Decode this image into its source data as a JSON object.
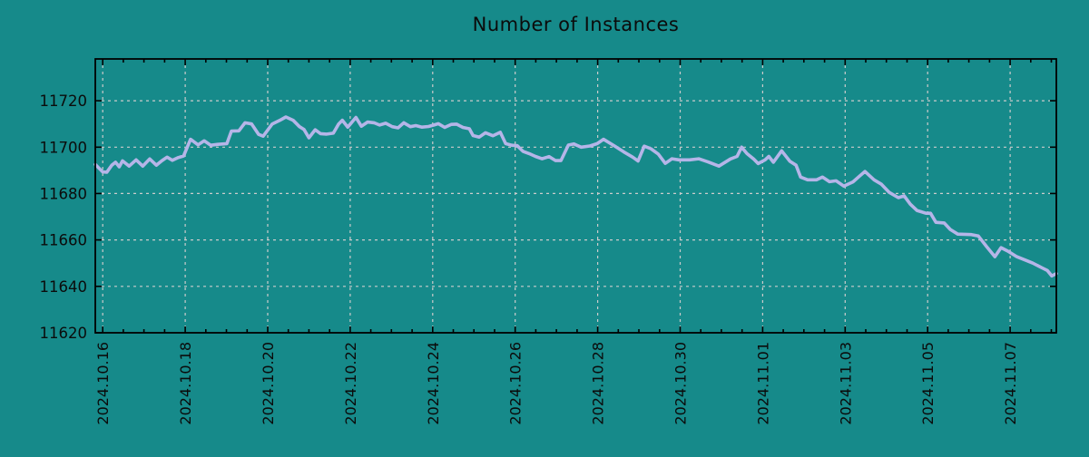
{
  "colors": {
    "background": "#168a8a",
    "line": "#b5b5e8",
    "grid": "#cccccc",
    "axis": "#000000",
    "text": "#0b0b0b"
  },
  "chart_data": {
    "type": "line",
    "title": "Number of Instances",
    "xlabel": "",
    "ylabel": "",
    "grid": true,
    "legend": null,
    "xlim": [
      -0.18,
      23.12
    ],
    "ylim": [
      11620,
      11738
    ],
    "y_ticks": [
      11620,
      11640,
      11660,
      11680,
      11700,
      11720
    ],
    "x_tick_days": [
      0,
      2,
      4,
      6,
      8,
      10,
      12,
      14,
      16,
      18,
      20,
      22
    ],
    "x_tick_labels": [
      "2024.10.16",
      "2024.10.18",
      "2024.10.20",
      "2024.10.22",
      "2024.10.24",
      "2024.10.26",
      "2024.10.28",
      "2024.10.30",
      "2024.11.01",
      "2024.11.03",
      "2024.11.05",
      "2024.11.07"
    ],
    "x_minor_step_days": 0.5,
    "series": [
      {
        "name": "instances",
        "color": "#b5b5e8",
        "points": [
          [
            -0.18,
            11692.5
          ],
          [
            0,
            11689.3
          ],
          [
            0.1,
            11689.2
          ],
          [
            0.22,
            11692.2
          ],
          [
            0.31,
            11693.5
          ],
          [
            0.4,
            11691.5
          ],
          [
            0.48,
            11694.1
          ],
          [
            0.64,
            11691.8
          ],
          [
            0.81,
            11694.5
          ],
          [
            0.97,
            11691.8
          ],
          [
            1.14,
            11694.9
          ],
          [
            1.3,
            11692.2
          ],
          [
            1.43,
            11694.1
          ],
          [
            1.56,
            11695.7
          ],
          [
            1.69,
            11694.3
          ],
          [
            1.83,
            11695.5
          ],
          [
            1.96,
            11696.2
          ],
          [
            2.13,
            11703.4
          ],
          [
            2.31,
            11701
          ],
          [
            2.46,
            11702.7
          ],
          [
            2.62,
            11700.8
          ],
          [
            2.79,
            11701.2
          ],
          [
            3.01,
            11701.5
          ],
          [
            3.12,
            11706.9
          ],
          [
            3.3,
            11707
          ],
          [
            3.45,
            11710.5
          ],
          [
            3.61,
            11710
          ],
          [
            3.78,
            11705.5
          ],
          [
            3.89,
            11704.7
          ],
          [
            4.11,
            11710
          ],
          [
            4.29,
            11711.5
          ],
          [
            4.44,
            11713
          ],
          [
            4.62,
            11711.5
          ],
          [
            4.77,
            11708.8
          ],
          [
            4.88,
            11707.6
          ],
          [
            5,
            11704
          ],
          [
            5.15,
            11707.5
          ],
          [
            5.28,
            11705.8
          ],
          [
            5.43,
            11705.6
          ],
          [
            5.59,
            11706
          ],
          [
            5.72,
            11710
          ],
          [
            5.81,
            11711.6
          ],
          [
            5.94,
            11708.6
          ],
          [
            6.14,
            11712.8
          ],
          [
            6.27,
            11709
          ],
          [
            6.42,
            11710.8
          ],
          [
            6.58,
            11710.5
          ],
          [
            6.71,
            11709.5
          ],
          [
            6.86,
            11710.3
          ],
          [
            7.02,
            11708.8
          ],
          [
            7.16,
            11708.3
          ],
          [
            7.3,
            11710.5
          ],
          [
            7.46,
            11708.8
          ],
          [
            7.59,
            11709.3
          ],
          [
            7.74,
            11708.6
          ],
          [
            7.9,
            11708.9
          ],
          [
            8.03,
            11709.5
          ],
          [
            8.14,
            11710.1
          ],
          [
            8.29,
            11708.5
          ],
          [
            8.45,
            11709.8
          ],
          [
            8.58,
            11709.9
          ],
          [
            8.73,
            11708.5
          ],
          [
            8.89,
            11707.9
          ],
          [
            8.98,
            11705
          ],
          [
            9.13,
            11704.3
          ],
          [
            9.28,
            11706.2
          ],
          [
            9.46,
            11704.9
          ],
          [
            9.64,
            11706.4
          ],
          [
            9.77,
            11701.5
          ],
          [
            9.92,
            11700.8
          ],
          [
            10.05,
            11700.6
          ],
          [
            10.19,
            11698.2
          ],
          [
            10.34,
            11697.2
          ],
          [
            10.49,
            11696
          ],
          [
            10.65,
            11695
          ],
          [
            10.82,
            11695.9
          ],
          [
            10.98,
            11694.2
          ],
          [
            11.11,
            11694.2
          ],
          [
            11.29,
            11700.9
          ],
          [
            11.42,
            11701.4
          ],
          [
            11.6,
            11700
          ],
          [
            11.81,
            11700.5
          ],
          [
            11.99,
            11701.5
          ],
          [
            12.14,
            11703.4
          ],
          [
            12.41,
            11700.5
          ],
          [
            12.63,
            11698
          ],
          [
            12.85,
            11695.7
          ],
          [
            12.98,
            11694
          ],
          [
            13.13,
            11700.4
          ],
          [
            13.29,
            11699.3
          ],
          [
            13.47,
            11697
          ],
          [
            13.64,
            11693
          ],
          [
            13.8,
            11695
          ],
          [
            13.97,
            11694.5
          ],
          [
            14.23,
            11694.5
          ],
          [
            14.45,
            11695
          ],
          [
            14.67,
            11693.7
          ],
          [
            14.94,
            11691.8
          ],
          [
            15.22,
            11694.9
          ],
          [
            15.38,
            11696
          ],
          [
            15.49,
            11700
          ],
          [
            15.62,
            11697.2
          ],
          [
            15.78,
            11694.9
          ],
          [
            15.89,
            11692.9
          ],
          [
            16.06,
            11694.5
          ],
          [
            16.15,
            11696
          ],
          [
            16.26,
            11693.5
          ],
          [
            16.46,
            11698.4
          ],
          [
            16.66,
            11693.9
          ],
          [
            16.81,
            11692.2
          ],
          [
            16.92,
            11687.1
          ],
          [
            17.09,
            11685.9
          ],
          [
            17.31,
            11685.9
          ],
          [
            17.45,
            11687.1
          ],
          [
            17.62,
            11685.1
          ],
          [
            17.78,
            11685.5
          ],
          [
            17.97,
            11683.2
          ],
          [
            18.19,
            11685
          ],
          [
            18.35,
            11687.5
          ],
          [
            18.48,
            11689.5
          ],
          [
            18.7,
            11685.9
          ],
          [
            18.88,
            11684
          ],
          [
            19.07,
            11680.5
          ],
          [
            19.29,
            11678.2
          ],
          [
            19.43,
            11679
          ],
          [
            19.58,
            11675.4
          ],
          [
            19.74,
            11672.7
          ],
          [
            19.96,
            11671.5
          ],
          [
            20.07,
            11671.5
          ],
          [
            20.2,
            11667.6
          ],
          [
            20.4,
            11667.3
          ],
          [
            20.55,
            11664.5
          ],
          [
            20.73,
            11662.5
          ],
          [
            21.06,
            11662.3
          ],
          [
            21.23,
            11661.7
          ],
          [
            21.43,
            11657.1
          ],
          [
            21.63,
            11652.8
          ],
          [
            21.78,
            11656.7
          ],
          [
            21.94,
            11655.2
          ],
          [
            22.16,
            11652.8
          ],
          [
            22.38,
            11651.2
          ],
          [
            22.55,
            11650
          ],
          [
            22.77,
            11648
          ],
          [
            22.9,
            11646.9
          ],
          [
            23.01,
            11644.5
          ],
          [
            23.12,
            11645.5
          ]
        ]
      }
    ]
  }
}
